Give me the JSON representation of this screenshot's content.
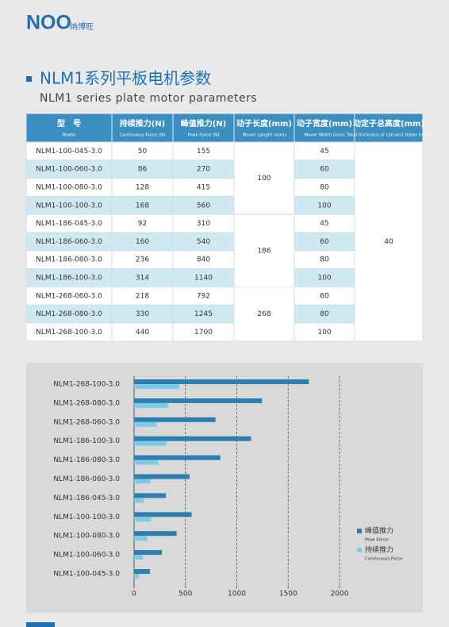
{
  "header": {
    "logo": "NOO",
    "brand": "纳博旺",
    "title": "NLM1系列平板电机参数",
    "subtitle": "NLM1 series plate motor parameters"
  },
  "table": {
    "headers": [
      {
        "zh": "型　号",
        "en": "Model"
      },
      {
        "zh": "持续推力(N)",
        "en": "Continuous Force (N)"
      },
      {
        "zh": "峰值推力(N)",
        "en": "Peak Force (N)"
      },
      {
        "zh": "动子长度(mm)",
        "en": "Mover Length (mm)"
      },
      {
        "zh": "动子宽度(mm)",
        "en": "Mover Width (mm)"
      },
      {
        "zh": "动定子总高度(mm)",
        "en": "Total thickness of coil and stator (mm)"
      }
    ],
    "total_thickness": 40,
    "groups": [
      {
        "mover_length": 100,
        "rows": [
          [
            "NLM1-100-045-3.0",
            50,
            155,
            45
          ],
          [
            "NLM1-100-060-3.0",
            86,
            270,
            60
          ],
          [
            "NLM1-100-080-3.0",
            128,
            415,
            80
          ],
          [
            "NLM1-100-100-3.0",
            168,
            560,
            100
          ]
        ]
      },
      {
        "mover_length": 186,
        "rows": [
          [
            "NLM1-186-045-3.0",
            92,
            310,
            45
          ],
          [
            "NLM1-186-060-3.0",
            160,
            540,
            60
          ],
          [
            "NLM1-186-080-3.0",
            236,
            840,
            80
          ],
          [
            "NLM1-186-100-3.0",
            314,
            1140,
            100
          ]
        ]
      },
      {
        "mover_length": 268,
        "rows": [
          [
            "NLM1-268-060-3.0",
            218,
            792,
            60
          ],
          [
            "NLM1-268-080-3.0",
            330,
            1245,
            80
          ],
          [
            "NLM1-268-100-3.0",
            440,
            1700,
            100
          ]
        ]
      }
    ]
  },
  "chart_data": {
    "type": "barh",
    "categories": [
      "NLM1-268-100-3.0",
      "NLM1-268-080-3.0",
      "NLM1-268-060-3.0",
      "NLM1-186-100-3.0",
      "NLM1-186-080-3.0",
      "NLM1-186-060-3.0",
      "NLM1-186-045-3.0",
      "NLM1-100-100-3.0",
      "NLM1-100-080-3.0",
      "NLM1-100-060-3.0",
      "NLM1-100-045-3.0"
    ],
    "series": [
      {
        "name": "峰值推力",
        "name_en": "Peak Force",
        "color": "#2c7fb0",
        "values": [
          1700,
          1245,
          792,
          1140,
          840,
          540,
          310,
          560,
          415,
          270,
          155
        ]
      },
      {
        "name": "持续推力",
        "name_en": "Continuous Force",
        "color": "#7fcbe4",
        "values": [
          440,
          330,
          218,
          314,
          236,
          160,
          92,
          168,
          128,
          86,
          50
        ]
      }
    ],
    "xlim": [
      0,
      2000
    ],
    "xticks": [
      0,
      500,
      1000,
      1500,
      2000
    ],
    "grid": true
  }
}
